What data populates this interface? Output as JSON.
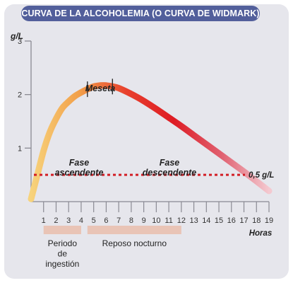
{
  "title": "CURVA DE LA ALCOHOLEMIA (O CURVA DE WIDMARK)",
  "chart_data": {
    "type": "line",
    "ylabel": "g/L",
    "xlabel": "Horas",
    "xlim": [
      0,
      19
    ],
    "ylim": [
      0,
      3
    ],
    "yticks": [
      1,
      2,
      3
    ],
    "xticks": [
      1,
      2,
      3,
      4,
      5,
      6,
      7,
      8,
      9,
      10,
      11,
      12,
      13,
      14,
      15,
      16,
      17,
      18,
      19
    ],
    "series": [
      {
        "x": [
          0,
          0.5,
          1,
          1.5,
          2,
          2.5,
          3,
          3.5,
          4,
          4.5,
          5,
          5.5,
          6,
          6.5,
          7,
          8,
          9,
          10,
          11,
          12,
          13,
          14,
          15,
          16,
          17,
          18,
          19
        ],
        "y": [
          0.05,
          0.5,
          0.95,
          1.3,
          1.55,
          1.75,
          1.87,
          1.97,
          2.04,
          2.1,
          2.15,
          2.17,
          2.17,
          2.15,
          2.12,
          2.01,
          1.88,
          1.73,
          1.57,
          1.41,
          1.24,
          1.07,
          0.9,
          0.73,
          0.56,
          0.38,
          0.2
        ],
        "colors": [
          "#f7d37c",
          "#f2a04a",
          "#e8402d",
          "#de1c24",
          "#e06070",
          "#f4c9d0"
        ]
      }
    ],
    "reference_line": {
      "y": 0.5,
      "label": "0,5 g/L",
      "color": "#d31f26"
    },
    "annotations": {
      "plateau": "Meseta",
      "ascending": [
        "Fase",
        "ascendente"
      ],
      "descending": [
        "Fase",
        "descendente"
      ]
    },
    "periods": [
      {
        "label": [
          "Periodo",
          "de",
          "ingestión"
        ],
        "start": 1,
        "end": 4
      },
      {
        "label": [
          "Reposo nocturno"
        ],
        "start": 4.5,
        "end": 12
      }
    ],
    "band_color": "#e9c4b6",
    "grid": false
  }
}
